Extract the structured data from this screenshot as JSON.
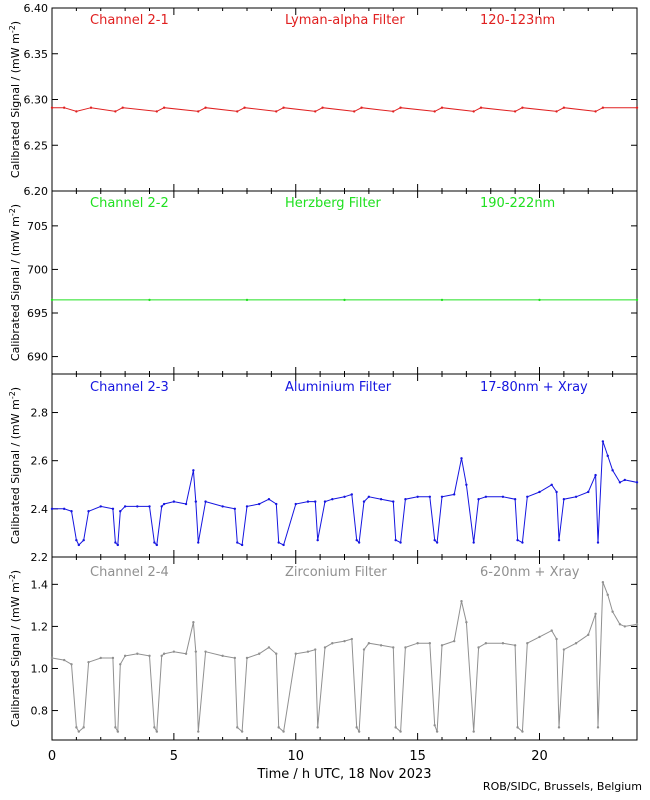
{
  "x_axis": {
    "label": "Time / h UTC, 18 Nov 2023",
    "range": [
      0,
      24
    ],
    "ticks": [
      0,
      5,
      10,
      15,
      20
    ],
    "tick_labels": [
      "0",
      "5",
      "10",
      "15",
      "20"
    ]
  },
  "credit": "ROB/SIDC, Brussels, Belgium",
  "ylabel_prefix": "Calibrated Signal / (mW m",
  "ylabel_exp": "-2",
  "ylabel_suffix": ")",
  "colors": {
    "ch1": "#e02020",
    "ch2": "#20e020",
    "ch3": "#1515e0",
    "ch4": "#909090"
  },
  "chart_data": [
    {
      "type": "scatter",
      "channel_label": "Channel 2-1",
      "filter_label": "Lyman-alpha Filter",
      "band_label": "120-123nm",
      "color_key": "ch1",
      "ylim": [
        6.2,
        6.4
      ],
      "yticks": [
        6.2,
        6.25,
        6.3,
        6.35,
        6.4
      ],
      "ytick_labels": [
        "6.20",
        "6.25",
        "6.30",
        "6.35",
        "6.40"
      ],
      "x": [
        0,
        0.5,
        1.0,
        1.6,
        2.6,
        2.9,
        4.3,
        4.6,
        6.0,
        6.3,
        7.6,
        7.9,
        9.2,
        9.5,
        10.8,
        11.1,
        12.4,
        12.7,
        14.0,
        14.3,
        15.7,
        16.0,
        17.3,
        17.6,
        19.0,
        19.3,
        20.7,
        21.0,
        22.3,
        22.6,
        24
      ],
      "y": [
        6.291,
        6.291,
        6.287,
        6.291,
        6.287,
        6.291,
        6.287,
        6.291,
        6.287,
        6.291,
        6.287,
        6.291,
        6.287,
        6.291,
        6.287,
        6.291,
        6.287,
        6.291,
        6.287,
        6.291,
        6.287,
        6.291,
        6.287,
        6.291,
        6.287,
        6.291,
        6.287,
        6.291,
        6.287,
        6.291,
        6.291
      ]
    },
    {
      "type": "scatter",
      "channel_label": "Channel 2-2",
      "filter_label": "Herzberg Filter",
      "band_label": "190-222nm",
      "color_key": "ch2",
      "ylim": [
        688,
        709
      ],
      "yticks": [
        690,
        695,
        700,
        705
      ],
      "ytick_labels": [
        "690",
        "695",
        "700",
        "705"
      ],
      "x": [
        0,
        4,
        8,
        12,
        16,
        20,
        24
      ],
      "y": [
        696.5,
        696.5,
        696.5,
        696.5,
        696.5,
        696.5,
        696.5
      ]
    },
    {
      "type": "scatter",
      "channel_label": "Channel 2-3",
      "filter_label": "Aluminium Filter",
      "band_label": "17-80nm + Xray",
      "color_key": "ch3",
      "ylim": [
        2.2,
        2.96
      ],
      "yticks": [
        2.2,
        2.4,
        2.6,
        2.8
      ],
      "ytick_labels": [
        "2.2",
        "2.4",
        "2.6",
        "2.8"
      ],
      "x": [
        0.0,
        0.5,
        0.8,
        1.0,
        1.1,
        1.3,
        1.5,
        2.0,
        2.5,
        2.6,
        2.7,
        2.8,
        3.0,
        3.5,
        4.0,
        4.2,
        4.3,
        4.5,
        4.6,
        5.0,
        5.5,
        5.8,
        5.9,
        6.0,
        6.3,
        7.0,
        7.5,
        7.6,
        7.8,
        8.0,
        8.5,
        8.9,
        9.2,
        9.3,
        9.5,
        10.0,
        10.5,
        10.8,
        10.9,
        11.2,
        11.5,
        12.0,
        12.3,
        12.5,
        12.6,
        12.8,
        13.0,
        13.5,
        14.0,
        14.1,
        14.3,
        14.5,
        15.0,
        15.5,
        15.7,
        15.8,
        16.0,
        16.5,
        16.8,
        17.0,
        17.3,
        17.5,
        17.8,
        18.5,
        19.0,
        19.1,
        19.3,
        19.5,
        20.0,
        20.5,
        20.7,
        20.8,
        21.0,
        21.5,
        22.0,
        22.3,
        22.4,
        22.6,
        22.8,
        23.0,
        23.3,
        23.5,
        24.0
      ],
      "y": [
        2.4,
        2.4,
        2.39,
        2.27,
        2.25,
        2.27,
        2.39,
        2.41,
        2.4,
        2.26,
        2.25,
        2.39,
        2.41,
        2.41,
        2.41,
        2.26,
        2.25,
        2.41,
        2.42,
        2.43,
        2.42,
        2.56,
        2.43,
        2.26,
        2.43,
        2.41,
        2.4,
        2.26,
        2.25,
        2.41,
        2.42,
        2.44,
        2.42,
        2.26,
        2.25,
        2.42,
        2.43,
        2.43,
        2.27,
        2.43,
        2.44,
        2.45,
        2.46,
        2.27,
        2.26,
        2.43,
        2.45,
        2.44,
        2.43,
        2.27,
        2.26,
        2.44,
        2.45,
        2.45,
        2.27,
        2.26,
        2.45,
        2.46,
        2.61,
        2.5,
        2.26,
        2.44,
        2.45,
        2.45,
        2.44,
        2.27,
        2.26,
        2.45,
        2.47,
        2.5,
        2.47,
        2.27,
        2.44,
        2.45,
        2.47,
        2.54,
        2.26,
        2.68,
        2.62,
        2.56,
        2.51,
        2.52,
        2.51
      ]
    },
    {
      "type": "scatter",
      "channel_label": "Channel 2-4",
      "filter_label": "Zirconium Filter",
      "band_label": "6-20nm + Xray",
      "color_key": "ch4",
      "ylim": [
        0.66,
        1.53
      ],
      "yticks": [
        0.8,
        1.0,
        1.2,
        1.4
      ],
      "ytick_labels": [
        "0.8",
        "1.0",
        "1.2",
        "1.4"
      ],
      "x": [
        0.0,
        0.5,
        0.8,
        1.0,
        1.1,
        1.3,
        1.5,
        2.0,
        2.5,
        2.6,
        2.7,
        2.8,
        3.0,
        3.5,
        4.0,
        4.2,
        4.3,
        4.5,
        4.6,
        5.0,
        5.5,
        5.8,
        5.9,
        6.0,
        6.3,
        7.0,
        7.5,
        7.6,
        7.8,
        8.0,
        8.5,
        8.9,
        9.2,
        9.3,
        9.5,
        10.0,
        10.5,
        10.8,
        10.9,
        11.2,
        11.5,
        12.0,
        12.3,
        12.5,
        12.6,
        12.8,
        13.0,
        13.5,
        14.0,
        14.1,
        14.3,
        14.5,
        15.0,
        15.5,
        15.7,
        15.8,
        16.0,
        16.5,
        16.8,
        17.0,
        17.3,
        17.5,
        17.8,
        18.5,
        19.0,
        19.1,
        19.3,
        19.5,
        20.0,
        20.5,
        20.7,
        20.8,
        21.0,
        21.5,
        22.0,
        22.3,
        22.4,
        22.6,
        22.8,
        23.0,
        23.3,
        23.5,
        24.0
      ],
      "y": [
        1.05,
        1.04,
        1.02,
        0.72,
        0.7,
        0.72,
        1.03,
        1.05,
        1.05,
        0.72,
        0.7,
        1.02,
        1.06,
        1.07,
        1.06,
        0.72,
        0.7,
        1.06,
        1.07,
        1.08,
        1.07,
        1.22,
        1.08,
        0.7,
        1.08,
        1.06,
        1.05,
        0.72,
        0.7,
        1.05,
        1.07,
        1.1,
        1.07,
        0.72,
        0.7,
        1.07,
        1.08,
        1.09,
        0.72,
        1.1,
        1.12,
        1.13,
        1.14,
        0.72,
        0.7,
        1.09,
        1.12,
        1.11,
        1.1,
        0.72,
        0.7,
        1.1,
        1.12,
        1.12,
        0.73,
        0.7,
        1.11,
        1.13,
        1.32,
        1.22,
        0.7,
        1.1,
        1.12,
        1.12,
        1.11,
        0.72,
        0.7,
        1.12,
        1.15,
        1.18,
        1.14,
        0.72,
        1.09,
        1.12,
        1.16,
        1.26,
        0.72,
        1.41,
        1.35,
        1.27,
        1.21,
        1.2,
        1.21
      ]
    }
  ]
}
